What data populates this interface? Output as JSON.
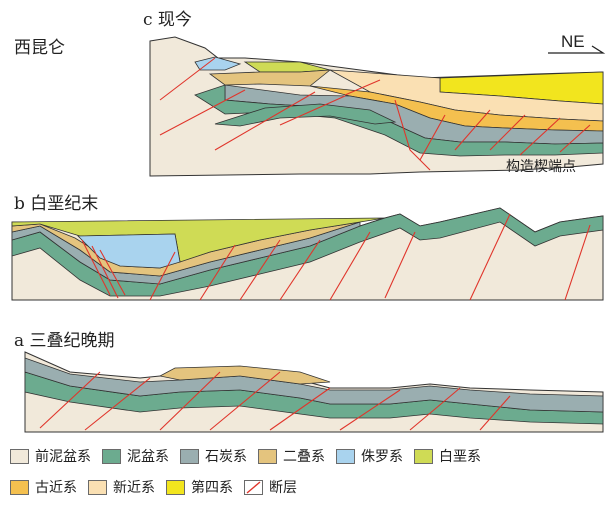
{
  "labels": {
    "section_c": "c  现今",
    "section_b": "b  白垩纪末",
    "section_a": "a  三叠纪晚期",
    "west": "西昆仑",
    "direction": "NE",
    "wedge_point": "构造楔端点"
  },
  "colors": {
    "pre_devonian": "#f1e9da",
    "devonian": "#6cab8f",
    "carboniferous": "#9aaeb0",
    "permian": "#e4c47e",
    "jurassic": "#a9d3ee",
    "cretaceous": "#cfdb55",
    "paleogene": "#f4c04f",
    "neogene": "#fae0b3",
    "quaternary": "#f2e51e",
    "fault": "#e0352b"
  },
  "legend": {
    "row1": [
      {
        "name": "前泥盆系",
        "color": "#f1e9da"
      },
      {
        "name": "泥盆系",
        "color": "#6cab8f"
      },
      {
        "name": "石炭系",
        "color": "#9aaeb0"
      },
      {
        "name": "二叠系",
        "color": "#e4c47e"
      },
      {
        "name": "侏罗系",
        "color": "#a9d3ee"
      },
      {
        "name": "白垩系",
        "color": "#cfdb55"
      }
    ],
    "row2": [
      {
        "name": "古近系",
        "color": "#f4c04f"
      },
      {
        "name": "新近系",
        "color": "#fae0b3"
      },
      {
        "name": "第四系",
        "color": "#f2e51e"
      },
      {
        "name": "断层",
        "color": "fault"
      }
    ]
  }
}
